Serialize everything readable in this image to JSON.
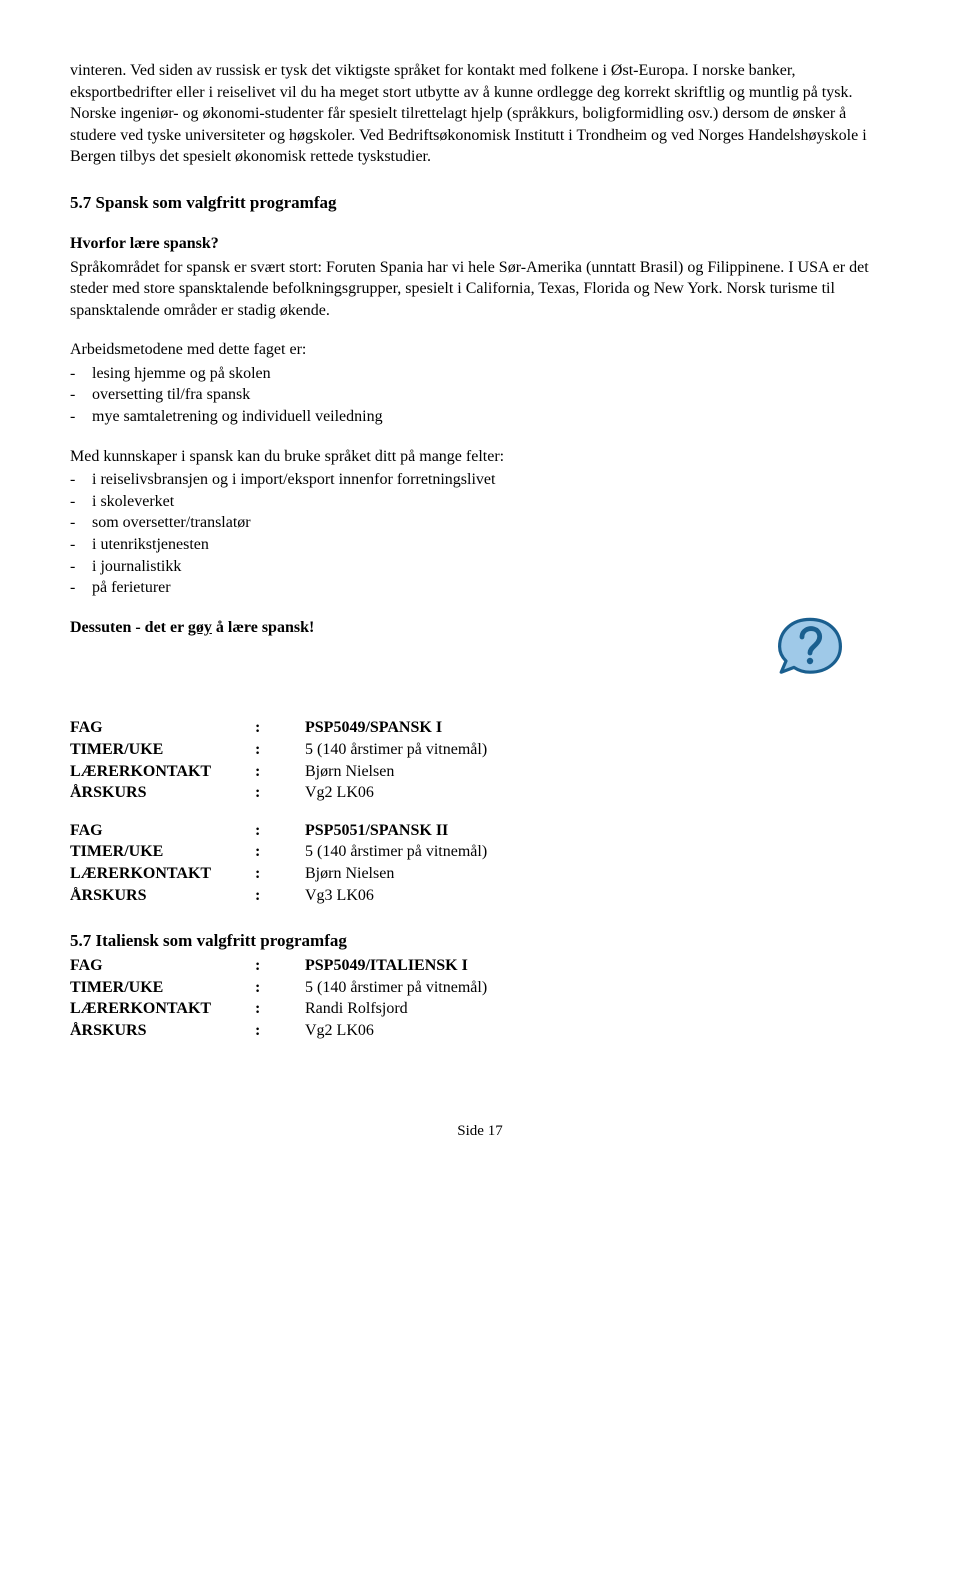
{
  "intro": "vinteren. Ved siden av russisk er tysk det viktigste språket for kontakt med folkene i Øst-Europa. I norske banker, eksportbedrifter eller i reiselivet vil du ha meget stort utbytte av å kunne ordlegge deg korrekt skriftlig og muntlig på tysk. Norske ingeniør- og økonomi-studenter får spesielt tilrettelagt hjelp (språkkurs, boligformidling osv.) dersom de ønsker å studere ved tyske universiteter og høgskoler. Ved Bedriftsøkonomisk Institutt i Trondheim og ved Norges Handelshøyskole i Bergen tilbys det spesielt økonomisk rettede tyskstudier.",
  "spanish": {
    "heading": "5.7 Spansk som valgfritt programfag",
    "whyHeading": "Hvorfor lære spansk?",
    "whyText": "Språkområdet for spansk er svært stort: Foruten Spania har vi hele Sør-Amerika (unntatt Brasil) og Filippinene. I USA er det steder med store spansktalende befolkningsgrupper, spesielt i California, Texas, Florida og New York. Norsk turisme til spansktalende områder er stadig økende.",
    "methodsHeading": "Arbeidsmetodene med dette faget er:",
    "methods": [
      "lesing hjemme og på skolen",
      "oversetting til/fra spansk",
      "mye samtaletrening og individuell veiledning"
    ],
    "fieldsHeading": "Med kunnskaper i spansk kan du bruke språket ditt på mange felter:",
    "fields": [
      "i reiselivsbransjen og i import/eksport innenfor forretningslivet",
      "i skoleverket",
      "som oversetter/translatør",
      "i utenrikstjenesten",
      "i journalistikk",
      "på ferieturer"
    ],
    "funPrefix": "Dessuten - det er ",
    "funWord": "gøy",
    "funSuffix": " å lære spansk!",
    "course1": {
      "fag": "PSP5049/SPANSK I",
      "timer": "5 (140 årstimer på vitnemål)",
      "kontakt": "Bjørn Nielsen",
      "arskurs": "Vg2 LK06"
    },
    "course2": {
      "fag": "PSP5051/SPANSK II",
      "timer": "5 (140 årstimer på vitnemål)",
      "kontakt": "Bjørn Nielsen",
      "arskurs": "Vg3 LK06"
    }
  },
  "italian": {
    "heading": "5.7 Italiensk som valgfritt programfag",
    "course": {
      "fag": "PSP5049/ITALIENSK I",
      "timer": "5 (140 årstimer på vitnemål)",
      "kontakt": "Randi Rolfsjord",
      "arskurs": "Vg2 LK06"
    }
  },
  "labels": {
    "fag": "FAG",
    "timer": "TIMER/UKE",
    "kontakt": "LÆRERKONTAKT",
    "arskurs": "ÅRSKURS"
  },
  "footer": "Side 17",
  "colors": {
    "iconStroke": "#1a5f8f",
    "iconFill": "#9fc9e8"
  }
}
